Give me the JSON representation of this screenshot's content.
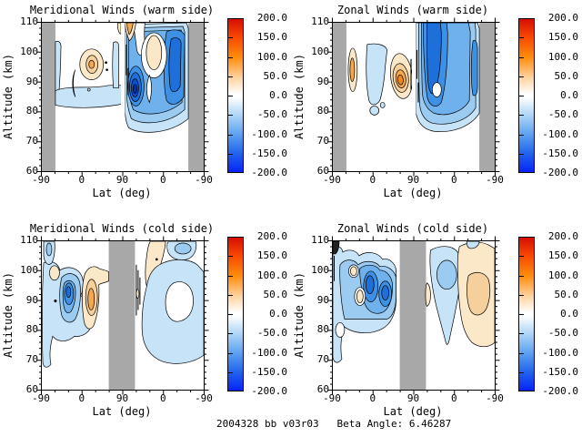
{
  "footer": {
    "caption": "2004328 bb v03r03   Beta Angle: 6.46287"
  },
  "shared": {
    "xlabel": "Lat (deg)",
    "ylabel": "Altitude (km)",
    "xticks": [
      "-90",
      "0",
      "90",
      "0",
      "-90"
    ],
    "yticks": [
      "110",
      "100",
      "90",
      "80",
      "70",
      "60"
    ],
    "colorbar_labels": [
      "200.0",
      "150.0",
      "100.0",
      "50.0",
      "0.0",
      "-50.0",
      "-100.0",
      "-150.0",
      "-200.0"
    ]
  },
  "panels": [
    {
      "id": "meridional-warm",
      "title": "Meridional Winds (warm side)"
    },
    {
      "id": "zonal-warm",
      "title": "Zonal Winds (warm side)"
    },
    {
      "id": "meridional-cold",
      "title": "Meridional Winds (cold side)"
    },
    {
      "id": "zonal-cold",
      "title": "Zonal Winds (cold side)"
    }
  ],
  "colors": {
    "masked_gray": "#A8A8A8",
    "contour_line": "#000000",
    "fill_blues": [
      "#C7E3F8",
      "#9CCBF2",
      "#6FB1EC",
      "#3E90E4",
      "#1E6FD9",
      "#0B4FCB",
      "#0030B8"
    ],
    "fill_oranges": [
      "#FAE8C9",
      "#F6D09C",
      "#F2A951",
      "#EC8A22"
    ],
    "colorbar_gradient_top_to_bottom": [
      "#D90E00",
      "#F84A00",
      "#FE8C0C",
      "#FDD29C",
      "#FFFFFF",
      "#ACD5F6",
      "#5FA3EF",
      "#2063EC",
      "#0823FA"
    ]
  },
  "chart_data": [
    {
      "type": "contour",
      "panel": "top-left",
      "title": "Meridional Winds (warm side)",
      "xlabel": "Lat (deg)",
      "ylabel": "Altitude (km)",
      "x_structure": "latitude sweeps -90 to 90 (first half of axis) then 90 back to -90 (second half)",
      "x_ticks": [
        -90,
        0,
        90,
        0,
        -90
      ],
      "y_range": [
        60,
        110
      ],
      "y_ticks": [
        110,
        100,
        90,
        80,
        70,
        60
      ],
      "colorbar": {
        "min": -200,
        "max": 200,
        "tick_step": 50,
        "colormap": "blue-white-red"
      },
      "contour_fill_step": 25,
      "masked_gray_regions": [
        "lat -90..-75 ascending edge",
        "lat -75..-90 descending edge",
        "narrow white gap at lat 90 node"
      ],
      "features": [
        "positive (orange) cell peaking ~ +75 near lat 15 ascending, alt 90-100 km",
        "weak negative band ~ -25 along alt 80-87 km across most ascending latitudes",
        "small positive sliver +50..+100 at top (alt 107-110 km) near lat 85-70 descending",
        "deep negative cell, peak ~ -175, near lat 75-65 descending, alt 82-94 km",
        "broad negative region -50..-125 over descending half, alt 73-110 km, strong band near lat 25..-10 descending",
        "small positive patch ~ +25 near lat 45..20 descending, alt 95-105 km"
      ]
    },
    {
      "type": "contour",
      "panel": "top-right",
      "title": "Zonal Winds (warm side)",
      "xlabel": "Lat (deg)",
      "ylabel": "Altitude (km)",
      "x_structure": "latitude sweeps -90 to 90 then 90 back to -90",
      "x_ticks": [
        -90,
        0,
        90,
        0,
        -90
      ],
      "y_range": [
        60,
        110
      ],
      "y_ticks": [
        110,
        100,
        90,
        80,
        70,
        60
      ],
      "colorbar": {
        "min": -200,
        "max": 200,
        "tick_step": 50,
        "colormap": "blue-white-red"
      },
      "contour_fill_step": 25,
      "masked_gray_regions": [
        "lat -90..-75 ascending edge",
        "lat -75..-90 descending edge"
      ],
      "features": [
        "positive cell ~ +75 near lat 50..65 ascending, alt 85-97 km",
        "thin positive sliver ~ +60 at lat ~ -72 ascending, alt 86-103 km",
        "weak negative blob ~ -25 near lat -40..-15 ascending, alt 84-104 km",
        "broad strong negative region, peak ~ -150, lat 88..-50 descending, alt 75-110 km",
        "narrow negative sliver ~ -100 near lat -60 descending, alt 85-103 km"
      ]
    },
    {
      "type": "contour",
      "panel": "bottom-left",
      "title": "Meridional Winds (cold side)",
      "xlabel": "Lat (deg)",
      "ylabel": "Altitude (km)",
      "x_structure": "latitude sweeps -90 to 90 then 90 back to -90",
      "x_ticks": [
        -90,
        0,
        90,
        0,
        -90
      ],
      "y_range": [
        60,
        110
      ],
      "y_ticks": [
        110,
        100,
        90,
        80,
        70,
        60
      ],
      "colorbar": {
        "min": -200,
        "max": 200,
        "tick_step": 50,
        "colormap": "blue-white-red"
      },
      "contour_fill_step": 25,
      "masked_gray_regions": [
        "lat ~60..90..60 around the pole (center of axis)"
      ],
      "features": [
        "negative cluster, peak ~ -125, lat -55..-15 ascending, alt 82-102 km",
        "positive cell ~ +75 near lat 5..25 ascending, alt 83-101 km",
        "weak negative patch ~ -50 top-left corner (lat ~ -85, alt 105-110 km)",
        "positive diagonal band +25..+50 from lat 60 descending at 110 km down to lat 40 at 85 km",
        "broad weak negative ~ -25 on descending side, alt 68-105 km, around a near-zero hole near lat 0..-40, alt 82-97 km"
      ]
    },
    {
      "type": "contour",
      "panel": "bottom-right",
      "title": "Zonal Winds (cold side)",
      "xlabel": "Lat (deg)",
      "ylabel": "Altitude (km)",
      "x_structure": "latitude sweeps -90 to 90 then 90 back to -90",
      "x_ticks": [
        -90,
        0,
        90,
        0,
        -90
      ],
      "y_range": [
        60,
        110
      ],
      "y_ticks": [
        110,
        100,
        90,
        80,
        70,
        60
      ],
      "colorbar": {
        "min": -200,
        "max": 200,
        "tick_step": 50,
        "colormap": "blue-white-red"
      },
      "contour_fill_step": 25,
      "masked_gray_regions": [
        "lat ~60..90..60 around the pole (center of axis)"
      ],
      "features": [
        "strong negative cluster, peak ~ -125, lat -55..25 ascending, alt 83-103 km",
        "negative teardrop -50..-75 near lat 55..25 descending, alt 75-108 km",
        "broad positive region +25..+60 over lat 10..-90 descending, alt 72-110 km",
        "small positive flecks ~ +25 inside the ascending cluster near lat -25, alt 88-100 km"
      ]
    }
  ]
}
